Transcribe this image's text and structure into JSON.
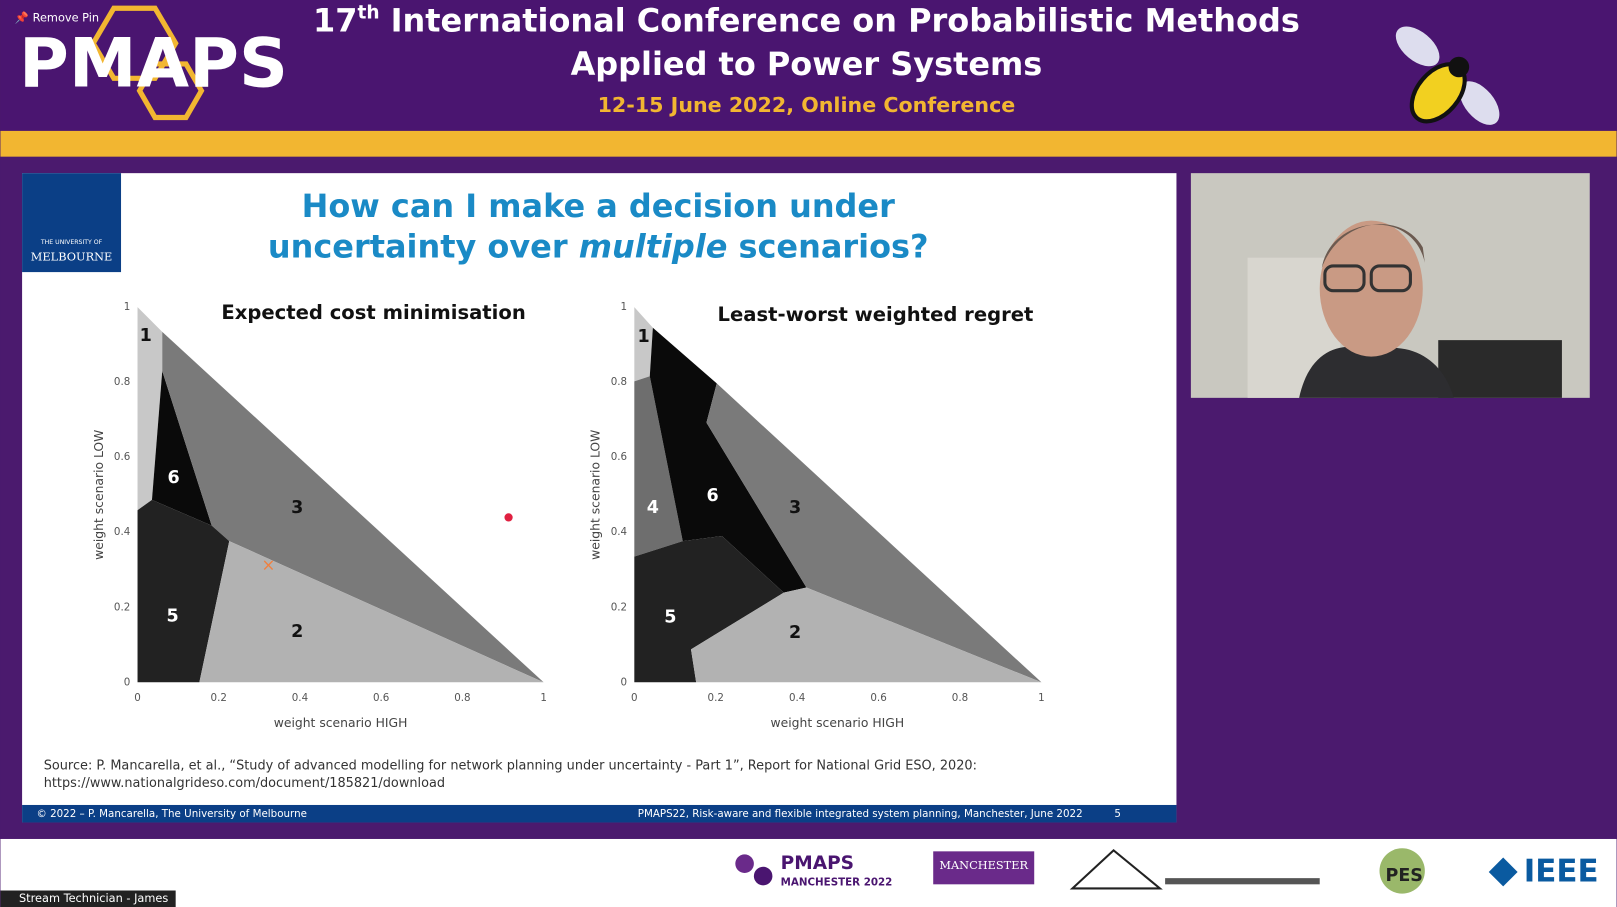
{
  "pin_label": "Remove Pin",
  "banner": {
    "logo": "PMAPS",
    "title_number": "17",
    "title_sup": "th",
    "title_line1": "International Conference on Probabilistic Methods",
    "title_line2": "Applied to Power Systems",
    "subtitle": "12-15 June 2022, Online Conference"
  },
  "slide": {
    "university": [
      "THE UNIVERSITY OF",
      "MELBOURNE"
    ],
    "title_line1": "How can I make a decision under",
    "title_line2_before": "uncertainty over",
    "title_line2_italic": "multiple",
    "title_line2_after": "scenarios?",
    "panels": [
      {
        "title": "Expected cost minimisation",
        "x_label": "weight scenario HIGH",
        "y_label": "weight scenario LOW",
        "x_ticks": [
          "0",
          "0.2",
          "0.4",
          "0.6",
          "0.8",
          "1"
        ],
        "y_ticks": [
          "0",
          "0.2",
          "0.4",
          "0.6",
          "0.8",
          "1"
        ],
        "regions": [
          "1",
          "6",
          "3",
          "5",
          "2"
        ]
      },
      {
        "title": "Least-worst weighted regret",
        "x_label": "weight scenario HIGH",
        "y_label": "weight scenario LOW",
        "x_ticks": [
          "0",
          "0.2",
          "0.4",
          "0.6",
          "0.8",
          "1"
        ],
        "y_ticks": [
          "0",
          "0.2",
          "0.4",
          "0.6",
          "0.8",
          "1"
        ],
        "regions": [
          "1",
          "4",
          "6",
          "3",
          "5",
          "2"
        ]
      }
    ],
    "source": [
      "Source: P. Mancarella, et al., “Study of advanced modelling for network planning under uncertainty - Part 1”, Report for National Grid ESO, 2020:",
      "https://www.nationalgrideso.com/document/185821/download"
    ],
    "footer_left": "© 2022 – P. Mancarella, The University of Melbourne",
    "footer_right": "PMAPS22, Risk-aware and flexible integrated system planning, Manchester, June 2022",
    "page": "5"
  },
  "sponsors": {
    "pmaps": "PMAPS",
    "pmaps_sub": "MANCHESTER 2022",
    "manchester": "MANCHESTER",
    "pes": "PES",
    "ieee": "IEEE"
  },
  "user_label": "Stream Technician - James"
}
